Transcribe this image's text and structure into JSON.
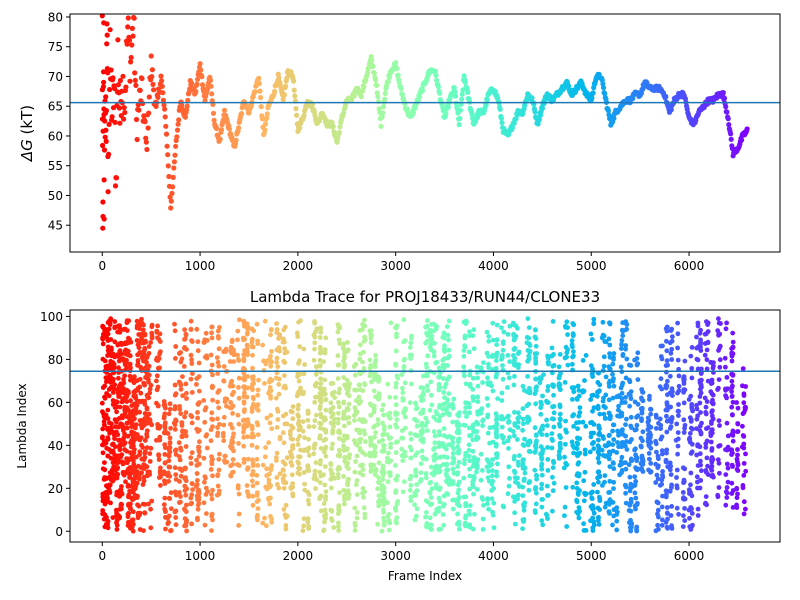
{
  "chart_data": [
    {
      "type": "scatter",
      "title": "",
      "xlabel": "",
      "ylabel": "ΔG (kT)",
      "ylabel_symbol": "ΔG",
      "ylabel_unit": " (kT)",
      "xlim": [
        -330,
        6930
      ],
      "ylim": [
        40.5,
        80.5
      ],
      "xticks": [
        0,
        1000,
        2000,
        3000,
        4000,
        5000,
        6000
      ],
      "yticks": [
        45,
        50,
        55,
        60,
        65,
        70,
        75,
        80
      ],
      "hline": 65.6,
      "hline_color": "#1f77b4",
      "colormap": "rainbow (red at frame 0 → violet at last frame)",
      "grid": false,
      "series": [
        {
          "points_approx": [
            [
              0,
              80
            ],
            [
              5,
              42
            ],
            [
              10,
              60
            ],
            [
              15,
              75
            ],
            [
              20,
              50
            ],
            [
              30,
              65
            ],
            [
              40,
              62
            ],
            [
              50,
              78
            ],
            [
              60,
              55
            ],
            [
              80,
              72
            ],
            [
              100,
              64
            ],
            [
              120,
              68
            ],
            [
              140,
              52
            ],
            [
              160,
              74
            ],
            [
              180,
              63
            ],
            [
              200,
              70
            ],
            [
              230,
              66
            ],
            [
              260,
              78
            ],
            [
              290,
              72
            ],
            [
              320,
              80
            ],
            [
              350,
              62
            ],
            [
              400,
              68
            ],
            [
              450,
              58
            ],
            [
              500,
              72
            ],
            [
              550,
              64
            ],
            [
              600,
              70
            ],
            [
              650,
              62
            ],
            [
              700,
              48
            ],
            [
              750,
              58
            ],
            [
              800,
              66
            ],
            [
              850,
              63
            ],
            [
              900,
              69
            ],
            [
              950,
              67
            ],
            [
              1000,
              72
            ],
            [
              1050,
              66
            ],
            [
              1100,
              70
            ],
            [
              1150,
              62
            ],
            [
              1200,
              59
            ],
            [
              1250,
              64
            ],
            [
              1300,
              61
            ],
            [
              1350,
              58
            ],
            [
              1400,
              62
            ],
            [
              1450,
              66
            ],
            [
              1500,
              64
            ],
            [
              1550,
              67
            ],
            [
              1600,
              70
            ],
            [
              1650,
              60
            ],
            [
              1700,
              65
            ],
            [
              1750,
              67
            ],
            [
              1800,
              70
            ],
            [
              1850,
              66
            ],
            [
              1900,
              71
            ],
            [
              1950,
              70
            ],
            [
              2000,
              61
            ],
            [
              2050,
              63
            ],
            [
              2100,
              66
            ],
            [
              2150,
              65
            ],
            [
              2200,
              62
            ],
            [
              2250,
              64
            ],
            [
              2300,
              62
            ],
            [
              2350,
              62
            ],
            [
              2400,
              59
            ],
            [
              2450,
              63
            ],
            [
              2500,
              66
            ],
            [
              2550,
              66
            ],
            [
              2600,
              68
            ],
            [
              2650,
              67
            ],
            [
              2700,
              70
            ],
            [
              2750,
              73
            ],
            [
              2800,
              69
            ],
            [
              2850,
              62
            ],
            [
              2900,
              68
            ],
            [
              2950,
              71
            ],
            [
              3000,
              72
            ],
            [
              3050,
              68
            ],
            [
              3100,
              65
            ],
            [
              3150,
              63
            ],
            [
              3200,
              65
            ],
            [
              3250,
              67
            ],
            [
              3300,
              69
            ],
            [
              3350,
              71
            ],
            [
              3400,
              71
            ],
            [
              3450,
              67
            ],
            [
              3500,
              63
            ],
            [
              3550,
              66
            ],
            [
              3600,
              68
            ],
            [
              3650,
              62
            ],
            [
              3700,
              70
            ],
            [
              3750,
              66
            ],
            [
              3800,
              62
            ],
            [
              3850,
              64
            ],
            [
              3900,
              64
            ],
            [
              3950,
              67
            ],
            [
              4000,
              68
            ],
            [
              4050,
              66
            ],
            [
              4100,
              61
            ],
            [
              4150,
              60
            ],
            [
              4200,
              62
            ],
            [
              4250,
              64
            ],
            [
              4300,
              64
            ],
            [
              4350,
              67
            ],
            [
              4400,
              66
            ],
            [
              4450,
              62
            ],
            [
              4500,
              65
            ],
            [
              4550,
              67
            ],
            [
              4600,
              66
            ],
            [
              4650,
              67
            ],
            [
              4700,
              68
            ],
            [
              4750,
              69
            ],
            [
              4800,
              67
            ],
            [
              4850,
              68
            ],
            [
              4900,
              69
            ],
            [
              4950,
              67
            ],
            [
              5000,
              66
            ],
            [
              5050,
              70
            ],
            [
              5100,
              70
            ],
            [
              5150,
              66
            ],
            [
              5200,
              62
            ],
            [
              5250,
              64
            ],
            [
              5300,
              65
            ],
            [
              5350,
              66
            ],
            [
              5400,
              66
            ],
            [
              5450,
              67
            ],
            [
              5500,
              67
            ],
            [
              5550,
              69
            ],
            [
              5600,
              68
            ],
            [
              5650,
              68
            ],
            [
              5700,
              68
            ],
            [
              5750,
              67
            ],
            [
              5800,
              64
            ],
            [
              5850,
              66
            ],
            [
              5900,
              67
            ],
            [
              5950,
              67
            ],
            [
              6000,
              63
            ],
            [
              6050,
              62
            ],
            [
              6100,
              64
            ],
            [
              6150,
              65
            ],
            [
              6200,
              66
            ],
            [
              6250,
              66
            ],
            [
              6300,
              67
            ],
            [
              6350,
              67
            ],
            [
              6400,
              63
            ],
            [
              6450,
              57
            ],
            [
              6500,
              58
            ],
            [
              6550,
              60
            ],
            [
              6600,
              61
            ]
          ]
        }
      ]
    },
    {
      "type": "scatter",
      "title": "Lambda Trace for PROJ18433/RUN44/CLONE33",
      "xlabel": "Frame Index",
      "ylabel": "Lambda Index",
      "xlim": [
        -330,
        6930
      ],
      "ylim": [
        -5,
        103
      ],
      "xticks": [
        0,
        1000,
        2000,
        3000,
        4000,
        5000,
        6000
      ],
      "yticks": [
        0,
        20,
        40,
        60,
        80,
        100
      ],
      "hline": 74.5,
      "hline_color": "#1f77b4",
      "colormap": "rainbow (red at frame 0 → violet at last frame)",
      "grid": false,
      "x_range": [
        0,
        6600
      ],
      "y_range": [
        0,
        99
      ],
      "series": [
        {
          "description_points": "~6600 frames, lambda index sweeping 0–99 repeatedly in vertical bands"
        }
      ]
    }
  ]
}
